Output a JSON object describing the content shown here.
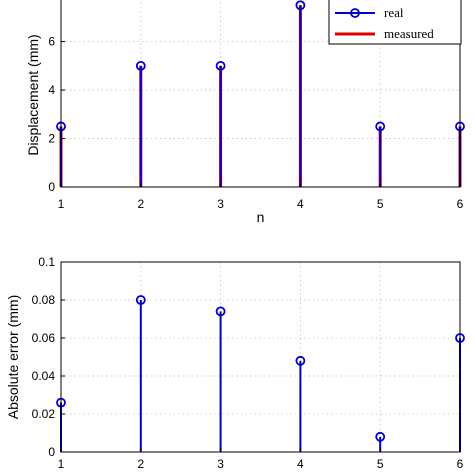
{
  "chart_data": [
    {
      "type": "stem",
      "xlabel": "n",
      "ylabel": "Displacement (mm)",
      "xlim": [
        1,
        6
      ],
      "ylim": [
        0,
        7.8
      ],
      "xticks": [
        "1",
        "2",
        "3",
        "4",
        "5",
        "6"
      ],
      "yticks": [
        "0",
        "2",
        "4",
        "6"
      ],
      "grid": true,
      "legend_position": "top-right",
      "x": [
        1,
        2,
        3,
        4,
        5,
        6
      ],
      "series": [
        {
          "name": "real",
          "values": [
            2.5,
            5,
            5,
            7.5,
            2.5,
            2.5
          ],
          "color": "#0000cc",
          "marker": "circle"
        },
        {
          "name": "measured",
          "values": [
            2.5,
            5,
            5,
            7.5,
            2.5,
            2.5
          ],
          "color": "#dd0000",
          "marker": "none"
        }
      ]
    },
    {
      "type": "stem",
      "xlabel": "",
      "ylabel": "Absolute error (mm)",
      "xlim": [
        1,
        6
      ],
      "ylim": [
        0,
        0.1
      ],
      "xticks": [
        "1",
        "2",
        "3",
        "4",
        "5",
        "6"
      ],
      "yticks": [
        "0",
        "0.02",
        "0.04",
        "0.06",
        "0.08",
        "0.1"
      ],
      "grid": true,
      "x": [
        1,
        2,
        3,
        4,
        5,
        6
      ],
      "series": [
        {
          "values": [
            0.026,
            0.08,
            0.074,
            0.048,
            0.008,
            0.06
          ],
          "color": "#0000cc",
          "marker": "circle"
        }
      ]
    }
  ]
}
